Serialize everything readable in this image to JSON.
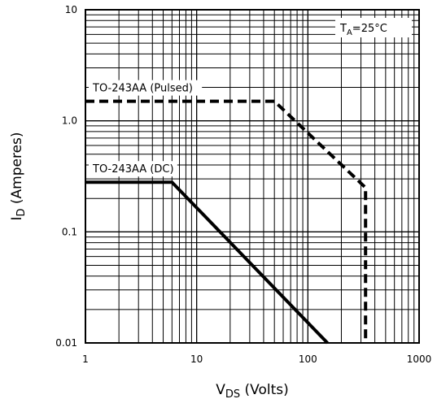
{
  "chart_data": {
    "type": "line",
    "xscale": "log",
    "yscale": "log",
    "xlim": [
      1,
      1000
    ],
    "ylim": [
      0.01,
      10
    ],
    "grid": true,
    "x_ticks": [
      "1",
      "10",
      "100",
      "1000"
    ],
    "y_ticks": [
      "0.01",
      "0.1",
      "1.0",
      "10"
    ],
    "xlabel_main": "V",
    "xlabel_sub": "DS",
    "xlabel_rest": " (Volts)",
    "ylabel_main": "I",
    "ylabel_sub": "D",
    "ylabel_rest": " (Amperes)",
    "annotation": {
      "prefix": "T",
      "sub": "A",
      "rest": "=25°C"
    },
    "series": [
      {
        "name": "TO-243AA (Pulsed)",
        "style": "dashed",
        "x": [
          1,
          50,
          330,
          330
        ],
        "y": [
          1.5,
          1.5,
          0.25,
          0.01
        ]
      },
      {
        "name": "TO-243AA (DC)",
        "style": "solid",
        "x": [
          1,
          6,
          150
        ],
        "y": [
          0.28,
          0.28,
          0.01
        ]
      }
    ],
    "colors": {
      "lines": "#000000",
      "grid": "#000000",
      "background": "#ffffff"
    }
  }
}
